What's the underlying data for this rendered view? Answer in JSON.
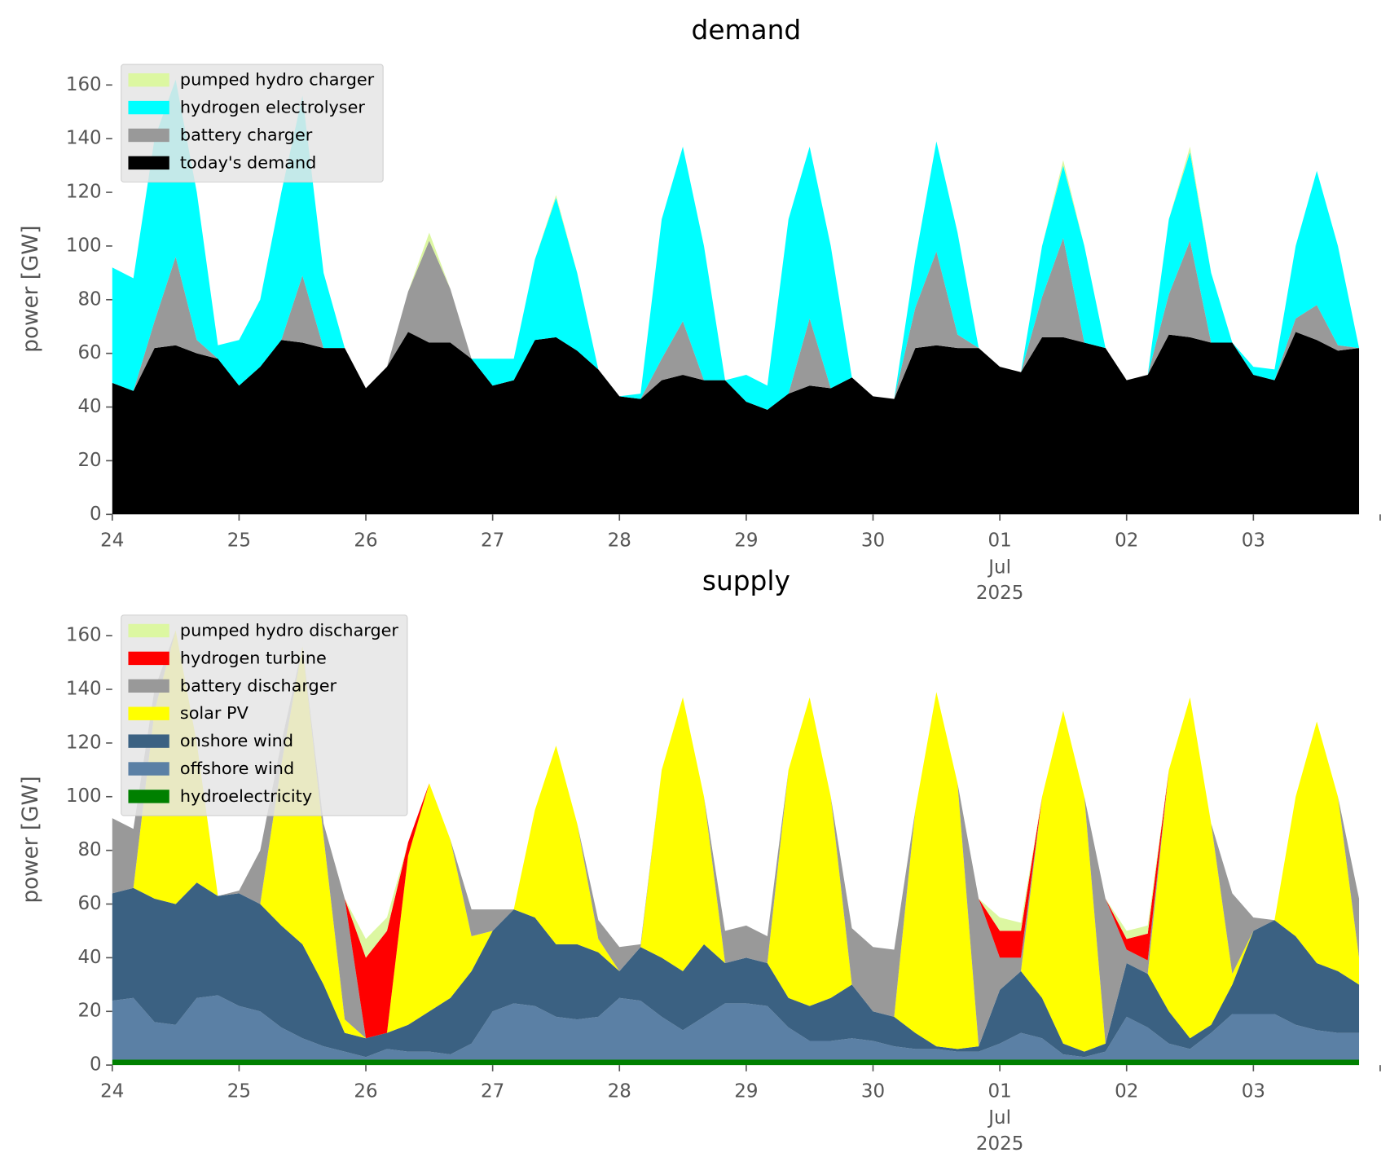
{
  "chart_data": [
    {
      "type": "stacked_area",
      "title": "demand",
      "y_label": "power [GW]",
      "x": [
        "2025-06-24T00:00",
        "2025-06-24T04:00",
        "2025-06-24T08:00",
        "2025-06-24T12:00",
        "2025-06-24T16:00",
        "2025-06-24T20:00",
        "2025-06-25T00:00",
        "2025-06-25T04:00",
        "2025-06-25T08:00",
        "2025-06-25T12:00",
        "2025-06-25T16:00",
        "2025-06-25T20:00",
        "2025-06-26T00:00",
        "2025-06-26T04:00",
        "2025-06-26T08:00",
        "2025-06-26T12:00",
        "2025-06-26T16:00",
        "2025-06-26T20:00",
        "2025-06-27T00:00",
        "2025-06-27T04:00",
        "2025-06-27T08:00",
        "2025-06-27T12:00",
        "2025-06-27T16:00",
        "2025-06-27T20:00",
        "2025-06-28T00:00",
        "2025-06-28T04:00",
        "2025-06-28T08:00",
        "2025-06-28T12:00",
        "2025-06-28T16:00",
        "2025-06-28T20:00",
        "2025-06-29T00:00",
        "2025-06-29T04:00",
        "2025-06-29T08:00",
        "2025-06-29T12:00",
        "2025-06-29T16:00",
        "2025-06-29T20:00",
        "2025-06-30T00:00",
        "2025-06-30T04:00",
        "2025-06-30T08:00",
        "2025-06-30T12:00",
        "2025-06-30T16:00",
        "2025-06-30T20:00",
        "2025-07-01T00:00",
        "2025-07-01T04:00",
        "2025-07-01T08:00",
        "2025-07-01T12:00",
        "2025-07-01T16:00",
        "2025-07-01T20:00",
        "2025-07-02T00:00",
        "2025-07-02T04:00",
        "2025-07-02T08:00",
        "2025-07-02T12:00",
        "2025-07-02T16:00",
        "2025-07-02T20:00",
        "2025-07-03T00:00",
        "2025-07-03T04:00",
        "2025-07-03T08:00",
        "2025-07-03T12:00",
        "2025-07-03T16:00",
        "2025-07-03T20:00"
      ],
      "series": [
        {
          "name": "pumped hydro charger",
          "color": "#dcf7a1",
          "values": [
            0,
            0,
            0,
            0,
            0,
            0,
            0,
            0,
            0,
            0,
            0,
            0,
            0,
            0,
            0,
            3,
            0,
            0,
            0,
            0,
            0,
            1,
            0,
            0,
            0,
            0,
            0,
            0,
            0,
            0,
            0,
            0,
            0,
            0,
            0,
            0,
            0,
            0,
            0,
            0,
            0,
            0,
            0,
            0,
            0,
            2,
            0,
            0,
            0,
            0,
            0,
            2,
            0,
            0,
            0,
            0,
            0,
            0,
            0,
            0
          ]
        },
        {
          "name": "hydrogen electrolyser",
          "color": "#00ffff",
          "values": [
            43,
            42,
            68,
            66,
            55,
            5,
            17,
            25,
            55,
            67,
            28,
            0,
            0,
            0,
            0,
            0,
            0,
            0,
            10,
            8,
            30,
            52,
            29,
            0,
            0,
            2,
            52,
            65,
            50,
            0,
            10,
            9,
            65,
            64,
            53,
            0,
            0,
            0,
            18,
            41,
            38,
            0,
            0,
            0,
            19,
            27,
            36,
            0,
            0,
            0,
            28,
            33,
            26,
            0,
            3,
            4,
            27,
            50,
            37,
            0
          ]
        },
        {
          "name": "battery charger",
          "color": "#999999",
          "values": [
            0,
            0,
            10,
            33,
            5,
            0,
            0,
            0,
            0,
            25,
            0,
            0,
            0,
            0,
            15,
            38,
            20,
            0,
            0,
            0,
            0,
            0,
            0,
            0,
            0,
            0,
            8,
            20,
            0,
            0,
            0,
            0,
            0,
            25,
            0,
            0,
            0,
            0,
            15,
            35,
            5,
            0,
            0,
            0,
            15,
            37,
            0,
            0,
            0,
            0,
            15,
            36,
            0,
            0,
            0,
            0,
            5,
            13,
            2,
            0
          ]
        },
        {
          "name": "today's demand",
          "color": "#000000",
          "values": [
            49,
            46,
            62,
            63,
            60,
            58,
            48,
            55,
            65,
            64,
            62,
            62,
            47,
            55,
            68,
            64,
            64,
            58,
            48,
            50,
            65,
            66,
            61,
            54,
            44,
            43,
            50,
            52,
            50,
            50,
            42,
            39,
            45,
            48,
            47,
            51,
            44,
            43,
            62,
            63,
            62,
            62,
            55,
            53,
            66,
            66,
            64,
            62,
            50,
            52,
            67,
            66,
            64,
            64,
            52,
            50,
            68,
            65,
            61,
            62
          ]
        }
      ],
      "xlim": [
        "2025-06-24T00:00",
        "2025-07-04T00:00"
      ],
      "xticks": [
        {
          "value": "2025-06-24",
          "label": "24"
        },
        {
          "value": "2025-06-25",
          "label": "25"
        },
        {
          "value": "2025-06-26",
          "label": "26"
        },
        {
          "value": "2025-06-27",
          "label": "27"
        },
        {
          "value": "2025-06-28",
          "label": "28"
        },
        {
          "value": "2025-06-29",
          "label": "29"
        },
        {
          "value": "2025-06-30",
          "label": "30"
        },
        {
          "value": "2025-07-01",
          "label": "01"
        },
        {
          "value": "2025-07-02",
          "label": "02"
        },
        {
          "value": "2025-07-03",
          "label": "03"
        }
      ],
      "x_month_label": "Jul",
      "x_year_label": "2025",
      "ylim": [
        0,
        168
      ],
      "yticks": [
        0,
        20,
        40,
        60,
        80,
        100,
        120,
        140,
        160
      ],
      "grid": false,
      "legend": "upper left"
    },
    {
      "type": "stacked_area",
      "title": "supply",
      "y_label": "power [GW]",
      "x": [
        "2025-06-24T00:00",
        "2025-06-24T04:00",
        "2025-06-24T08:00",
        "2025-06-24T12:00",
        "2025-06-24T16:00",
        "2025-06-24T20:00",
        "2025-06-25T00:00",
        "2025-06-25T04:00",
        "2025-06-25T08:00",
        "2025-06-25T12:00",
        "2025-06-25T16:00",
        "2025-06-25T20:00",
        "2025-06-26T00:00",
        "2025-06-26T04:00",
        "2025-06-26T08:00",
        "2025-06-26T12:00",
        "2025-06-26T16:00",
        "2025-06-26T20:00",
        "2025-06-27T00:00",
        "2025-06-27T04:00",
        "2025-06-27T08:00",
        "2025-06-27T12:00",
        "2025-06-27T16:00",
        "2025-06-27T20:00",
        "2025-06-28T00:00",
        "2025-06-28T04:00",
        "2025-06-28T08:00",
        "2025-06-28T12:00",
        "2025-06-28T16:00",
        "2025-06-28T20:00",
        "2025-06-29T00:00",
        "2025-06-29T04:00",
        "2025-06-29T08:00",
        "2025-06-29T12:00",
        "2025-06-29T16:00",
        "2025-06-29T20:00",
        "2025-06-30T00:00",
        "2025-06-30T04:00",
        "2025-06-30T08:00",
        "2025-06-30T12:00",
        "2025-06-30T16:00",
        "2025-06-30T20:00",
        "2025-07-01T00:00",
        "2025-07-01T04:00",
        "2025-07-01T08:00",
        "2025-07-01T12:00",
        "2025-07-01T16:00",
        "2025-07-01T20:00",
        "2025-07-02T00:00",
        "2025-07-02T04:00",
        "2025-07-02T08:00",
        "2025-07-02T12:00",
        "2025-07-02T16:00",
        "2025-07-02T20:00",
        "2025-07-03T00:00",
        "2025-07-03T04:00",
        "2025-07-03T08:00",
        "2025-07-03T12:00",
        "2025-07-03T16:00",
        "2025-07-03T20:00"
      ],
      "series": [
        {
          "name": "pumped hydro discharger",
          "color": "#dcf7a1",
          "values": [
            0,
            0,
            0,
            0,
            0,
            0,
            0,
            0,
            0,
            0,
            0,
            0,
            7,
            5,
            0,
            0,
            0,
            0,
            0,
            0,
            0,
            0,
            0,
            0,
            0,
            0,
            0,
            0,
            0,
            0,
            0,
            0,
            0,
            0,
            0,
            0,
            0,
            0,
            0,
            0,
            0,
            0,
            5,
            3,
            0,
            0,
            0,
            0,
            3,
            3,
            0,
            0,
            0,
            0,
            0,
            0,
            0,
            0,
            0,
            0
          ]
        },
        {
          "name": "hydrogen turbine",
          "color": "#ff0000",
          "values": [
            0,
            0,
            0,
            0,
            0,
            0,
            0,
            0,
            0,
            0,
            0,
            0,
            30,
            38,
            5,
            0,
            0,
            0,
            0,
            0,
            0,
            0,
            0,
            0,
            0,
            0,
            0,
            0,
            0,
            0,
            0,
            0,
            0,
            0,
            0,
            0,
            0,
            0,
            0,
            0,
            0,
            0,
            10,
            10,
            0,
            0,
            0,
            0,
            4,
            10,
            0,
            0,
            0,
            0,
            0,
            0,
            0,
            0,
            0,
            0
          ]
        },
        {
          "name": "battery discharger",
          "color": "#999999",
          "values": [
            28,
            22,
            8,
            0,
            0,
            0,
            1,
            20,
            8,
            0,
            5,
            45,
            0,
            0,
            0,
            0,
            0,
            10,
            8,
            0,
            0,
            0,
            0,
            7,
            9,
            1,
            0,
            0,
            0,
            12,
            12,
            10,
            0,
            0,
            0,
            21,
            24,
            25,
            0,
            0,
            0,
            55,
            12,
            5,
            0,
            0,
            0,
            54,
            5,
            5,
            0,
            0,
            0,
            30,
            5,
            0,
            0,
            0,
            0,
            22
          ]
        },
        {
          "name": "solar PV",
          "color": "#ffff00",
          "values": [
            0,
            0,
            70,
            102,
            52,
            0,
            0,
            0,
            60,
            111,
            55,
            5,
            0,
            0,
            63,
            85,
            59,
            13,
            0,
            0,
            40,
            74,
            45,
            5,
            0,
            0,
            70,
            102,
            55,
            0,
            0,
            0,
            85,
            115,
            75,
            0,
            0,
            0,
            83,
            132,
            99,
            0,
            0,
            0,
            75,
            124,
            95,
            0,
            0,
            0,
            90,
            127,
            75,
            4,
            0,
            0,
            52,
            90,
            65,
            10
          ]
        },
        {
          "name": "onshore wind",
          "color": "#3b6182",
          "values": [
            40,
            41,
            46,
            45,
            43,
            37,
            42,
            40,
            38,
            35,
            23,
            7,
            7,
            6,
            10,
            15,
            21,
            27,
            30,
            35,
            33,
            27,
            28,
            24,
            10,
            20,
            22,
            22,
            27,
            15,
            17,
            16,
            11,
            13,
            16,
            20,
            11,
            11,
            6,
            1,
            1,
            2,
            20,
            23,
            15,
            4,
            2,
            3,
            20,
            20,
            12,
            4,
            3,
            11,
            31,
            35,
            33,
            25,
            23,
            18
          ]
        },
        {
          "name": "offshore wind",
          "color": "#5b80a5",
          "values": [
            22,
            23,
            14,
            13,
            23,
            24,
            20,
            18,
            12,
            8,
            5,
            3,
            1,
            4,
            3,
            3,
            2,
            6,
            18,
            21,
            20,
            16,
            15,
            16,
            23,
            22,
            16,
            11,
            16,
            21,
            21,
            20,
            12,
            7,
            7,
            8,
            7,
            5,
            4,
            4,
            3,
            3,
            6,
            10,
            8,
            2,
            1,
            3,
            16,
            12,
            6,
            4,
            10,
            17,
            17,
            17,
            13,
            11,
            10,
            10
          ]
        },
        {
          "name": "hydroelectricity",
          "color": "#008000",
          "values": [
            2,
            2,
            2,
            2,
            2,
            2,
            2,
            2,
            2,
            2,
            2,
            2,
            2,
            2,
            2,
            2,
            2,
            2,
            2,
            2,
            2,
            2,
            2,
            2,
            2,
            2,
            2,
            2,
            2,
            2,
            2,
            2,
            2,
            2,
            2,
            2,
            2,
            2,
            2,
            2,
            2,
            2,
            2,
            2,
            2,
            2,
            2,
            2,
            2,
            2,
            2,
            2,
            2,
            2,
            2,
            2,
            2,
            2,
            2,
            2
          ]
        }
      ],
      "xlim": [
        "2025-06-24T00:00",
        "2025-07-04T00:00"
      ],
      "xticks": [
        {
          "value": "2025-06-24",
          "label": "24"
        },
        {
          "value": "2025-06-25",
          "label": "25"
        },
        {
          "value": "2025-06-26",
          "label": "26"
        },
        {
          "value": "2025-06-27",
          "label": "27"
        },
        {
          "value": "2025-06-28",
          "label": "28"
        },
        {
          "value": "2025-06-29",
          "label": "29"
        },
        {
          "value": "2025-06-30",
          "label": "30"
        },
        {
          "value": "2025-07-01",
          "label": "01"
        },
        {
          "value": "2025-07-02",
          "label": "02"
        },
        {
          "value": "2025-07-03",
          "label": "03"
        }
      ],
      "x_month_label": "Jul",
      "x_year_label": "2025",
      "ylim": [
        0,
        168
      ],
      "yticks": [
        0,
        20,
        40,
        60,
        80,
        100,
        120,
        140,
        160
      ],
      "grid": false,
      "legend": "upper left"
    }
  ]
}
